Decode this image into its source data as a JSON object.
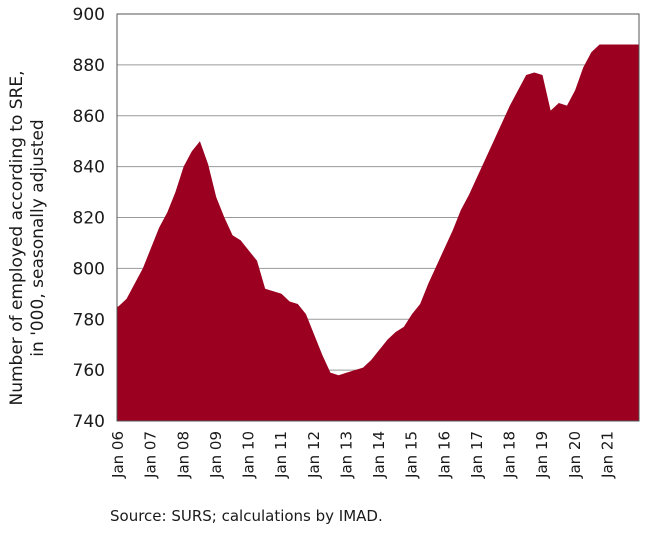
{
  "chart_data": {
    "type": "area",
    "title": "",
    "xlabel": "",
    "ylabel": "Number of employed according to SRE, in '000, seasonally adjusted",
    "ylabel_lines": [
      "Number of employed according to SRE,",
      "in '000, seasonally adjusted"
    ],
    "ylim": [
      740,
      900
    ],
    "yticks": [
      740,
      760,
      780,
      800,
      820,
      840,
      860,
      880,
      900
    ],
    "xlim": [
      "2006-01",
      "2021-12"
    ],
    "x_tick_labels": [
      "Jan 06",
      "Jan 07",
      "Jan 08",
      "Jan 09",
      "Jan 10",
      "Jan 11",
      "Jan 12",
      "Jan 13",
      "Jan 14",
      "Jan 15",
      "Jan 16",
      "Jan 17",
      "Jan 18",
      "Jan 19",
      "Jan 20",
      "Jan 21"
    ],
    "grid": true,
    "color": "#9b0020",
    "series": [
      {
        "name": "",
        "x": [
          "2006-01",
          "2006-04",
          "2006-07",
          "2006-10",
          "2007-01",
          "2007-04",
          "2007-07",
          "2007-10",
          "2008-01",
          "2008-04",
          "2008-07",
          "2008-10",
          "2009-01",
          "2009-04",
          "2009-07",
          "2009-10",
          "2010-01",
          "2010-04",
          "2010-07",
          "2010-10",
          "2011-01",
          "2011-04",
          "2011-07",
          "2011-10",
          "2012-01",
          "2012-04",
          "2012-07",
          "2012-10",
          "2013-01",
          "2013-04",
          "2013-07",
          "2013-10",
          "2014-01",
          "2014-04",
          "2014-07",
          "2014-10",
          "2015-01",
          "2015-04",
          "2015-07",
          "2015-10",
          "2016-01",
          "2016-04",
          "2016-07",
          "2016-10",
          "2017-01",
          "2017-04",
          "2017-07",
          "2017-10",
          "2018-01",
          "2018-04",
          "2018-07",
          "2018-10",
          "2019-01",
          "2019-04",
          "2019-07",
          "2019-10",
          "2020-01",
          "2020-04",
          "2020-07",
          "2020-10",
          "2021-01",
          "2021-04",
          "2021-07",
          "2021-10",
          "2021-12"
        ],
        "values": [
          785,
          788,
          794,
          800,
          808,
          816,
          822,
          830,
          840,
          846,
          850,
          841,
          828,
          820,
          813,
          811,
          807,
          803,
          792,
          791,
          790,
          787,
          786,
          782,
          774,
          766,
          759,
          758,
          759,
          760,
          761,
          764,
          768,
          772,
          775,
          777,
          782,
          786,
          794,
          801,
          808,
          815,
          823,
          829,
          836,
          843,
          850,
          857,
          864,
          870,
          876,
          877,
          876,
          862,
          865,
          864,
          870,
          879,
          885,
          888,
          888,
          888,
          888,
          888,
          888
        ]
      }
    ],
    "source_note": "Source: SURS; calculations by IMAD."
  }
}
